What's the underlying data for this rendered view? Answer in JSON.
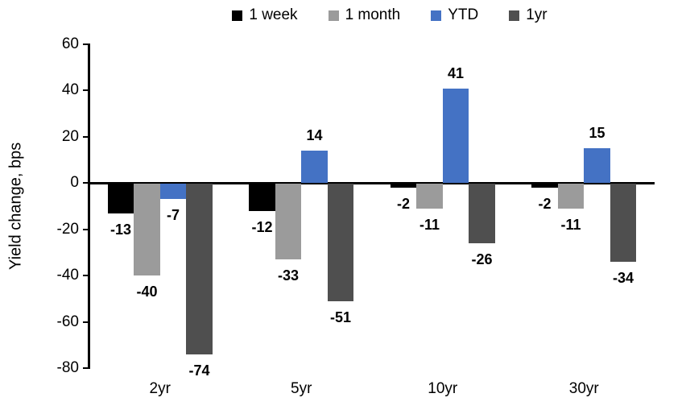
{
  "chart_data": {
    "type": "bar",
    "categories": [
      "2yr",
      "5yr",
      "10yr",
      "30yr"
    ],
    "series": [
      {
        "name": "1 week",
        "color": "#000000",
        "values": [
          -13,
          -12,
          -2,
          -2
        ]
      },
      {
        "name": "1 month",
        "color": "#9B9B9B",
        "values": [
          -40,
          -33,
          -11,
          -11
        ]
      },
      {
        "name": "YTD",
        "color": "#4472C4",
        "values": [
          -7,
          14,
          41,
          15
        ]
      },
      {
        "name": "1yr",
        "color": "#4F4F4F",
        "values": [
          -74,
          -51,
          -26,
          -34
        ]
      }
    ],
    "title": "",
    "xlabel": "",
    "ylabel": "Yield change, bps",
    "ylim": [
      -80,
      60
    ],
    "ytick_step": 20,
    "yticks": [
      60,
      40,
      20,
      0,
      -20,
      -40,
      -60,
      -80
    ],
    "grid": false,
    "legend_position": "top",
    "data_labels": "outside_end",
    "axis_color": "#000000",
    "background": "#FFFFFF"
  }
}
